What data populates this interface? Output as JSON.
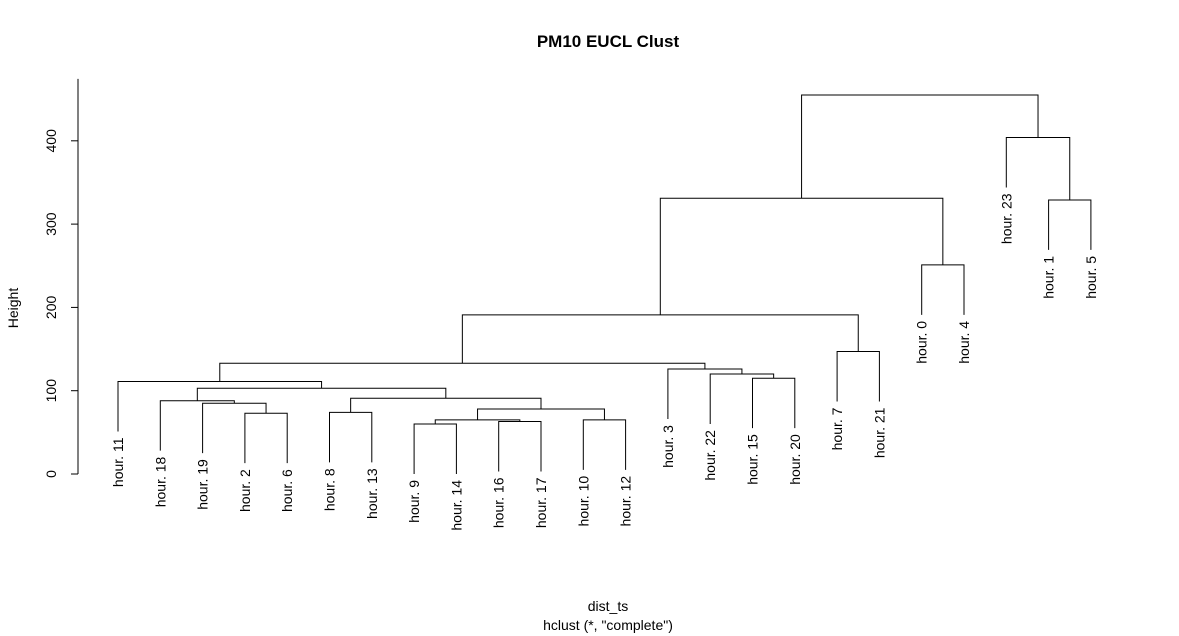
{
  "chart_data": {
    "type": "dendrogram",
    "title": "PM10 EUCL Clust",
    "xlabel": "dist_ts",
    "sublabel": "hclust (*, \"complete\")",
    "ylabel": "Height",
    "ylim": [
      0,
      455
    ],
    "yticks": [
      0,
      100,
      200,
      300,
      400
    ],
    "leaves": [
      "hour. 11",
      "hour. 18",
      "hour. 19",
      "hour. 2",
      "hour. 6",
      "hour. 8",
      "hour. 13",
      "hour. 9",
      "hour. 14",
      "hour. 16",
      "hour. 17",
      "hour. 10",
      "hour. 12",
      "hour. 3",
      "hour. 22",
      "hour. 15",
      "hour. 20",
      "hour. 7",
      "hour. 21",
      "hour. 0",
      "hour. 4",
      "hour. 23",
      "hour. 1",
      "hour. 5"
    ],
    "merges": [
      {
        "id": "m1",
        "left": 3,
        "right": 4,
        "height": 73
      },
      {
        "id": "m2",
        "left": 2,
        "right": "m1",
        "height": 85
      },
      {
        "id": "m3",
        "left": 1,
        "right": "m2",
        "height": 88
      },
      {
        "id": "m4",
        "left": 5,
        "right": 6,
        "height": 74
      },
      {
        "id": "m5",
        "left": 7,
        "right": 8,
        "height": 60
      },
      {
        "id": "m6",
        "left": 9,
        "right": 10,
        "height": 63
      },
      {
        "id": "m7",
        "left": "m5",
        "right": "m6",
        "height": 65
      },
      {
        "id": "m8",
        "left": 11,
        "right": 12,
        "height": 65
      },
      {
        "id": "m9",
        "left": "m7",
        "right": "m8",
        "height": 78
      },
      {
        "id": "m10",
        "left": "m4",
        "right": "m9",
        "height": 91
      },
      {
        "id": "m11",
        "left": "m3",
        "right": "m10",
        "height": 103
      },
      {
        "id": "m12",
        "left": 0,
        "right": "m11",
        "height": 111
      },
      {
        "id": "m13",
        "left": 15,
        "right": 16,
        "height": 115
      },
      {
        "id": "m14",
        "left": 14,
        "right": "m13",
        "height": 120
      },
      {
        "id": "m15",
        "left": 13,
        "right": "m14",
        "height": 126
      },
      {
        "id": "m16",
        "left": "m12",
        "right": "m15",
        "height": 133
      },
      {
        "id": "m17",
        "left": 17,
        "right": 18,
        "height": 147
      },
      {
        "id": "m18",
        "left": "m16",
        "right": "m17",
        "height": 191
      },
      {
        "id": "m19",
        "left": 19,
        "right": 20,
        "height": 251
      },
      {
        "id": "m20",
        "left": "m18",
        "right": "m19",
        "height": 331
      },
      {
        "id": "m21",
        "left": 22,
        "right": 23,
        "height": 329
      },
      {
        "id": "m22",
        "left": 21,
        "right": "m21",
        "height": 404
      },
      {
        "id": "m23",
        "left": "m20",
        "right": "m22",
        "height": 455
      }
    ]
  }
}
